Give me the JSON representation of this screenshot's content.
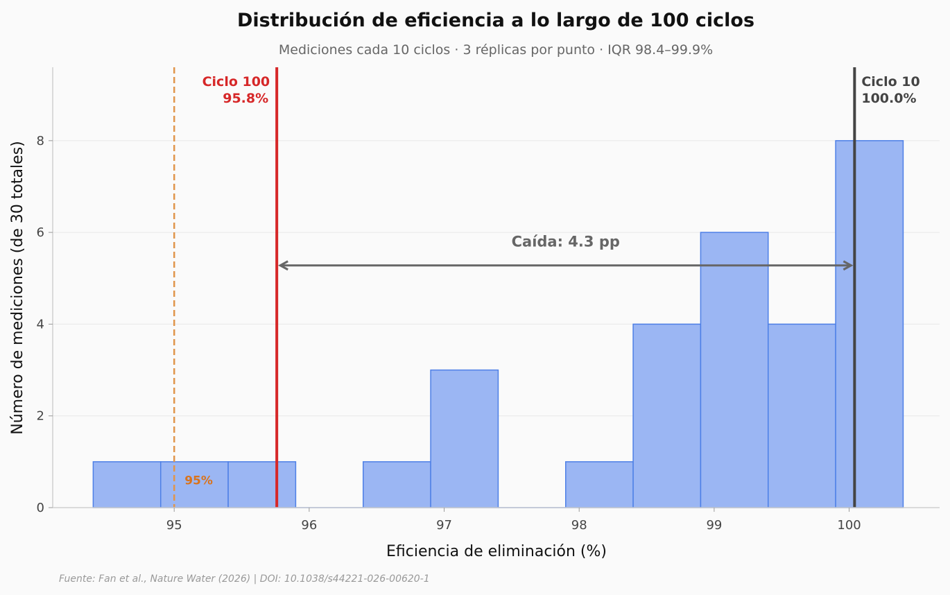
{
  "chart_data": {
    "type": "histogram",
    "title": "Distribución de eficiencia a lo largo de 100 ciclos",
    "subtitle": "Mediciones cada 10 ciclos · 3 réplicas por punto · IQR 98.4–99.9%",
    "xlabel": "Eficiencia de eliminación (%)",
    "ylabel": "Número de mediciones (de 30 totales)",
    "xlim": [
      94.1,
      100.67
    ],
    "ylim": [
      0,
      9.6
    ],
    "xticks": [
      95,
      96,
      97,
      98,
      99,
      100
    ],
    "yticks": [
      0,
      2,
      4,
      6,
      8
    ],
    "bin_edges": [
      94.4,
      94.9,
      95.4,
      95.9,
      96.4,
      96.9,
      97.4,
      97.9,
      98.4,
      98.9,
      99.4,
      99.9,
      100.4
    ],
    "counts": [
      1,
      1,
      1,
      0,
      1,
      3,
      0,
      1,
      4,
      6,
      4,
      8
    ],
    "bar_color": "#9bb6f3",
    "bar_edge_color": "#4d7fe6",
    "reference_lines": [
      {
        "id": "threshold",
        "x": 95.0,
        "label": "95%",
        "color": "#e0954a",
        "label_color": "#d9731c",
        "style": "dashed"
      },
      {
        "id": "cycle100",
        "x": 95.76,
        "label": [
          "Ciclo 100",
          "95.8%"
        ],
        "color": "#d62728",
        "label_color": "#d62728",
        "style": "solid"
      },
      {
        "id": "cycle10",
        "x": 100.04,
        "label": [
          "Ciclo 10",
          "100.0%"
        ],
        "color": "#444444",
        "label_color": "#444444",
        "style": "solid"
      }
    ],
    "annotation": {
      "text": "Caída: 4.3 pp",
      "from_x": 95.76,
      "to_x": 100.04,
      "y": 5.28,
      "text_y": 5.8,
      "color": "#666666"
    },
    "source": "Fuente: Fan et al., Nature Water (2026) | DOI: 10.1038/s44221-026-00620-1"
  }
}
